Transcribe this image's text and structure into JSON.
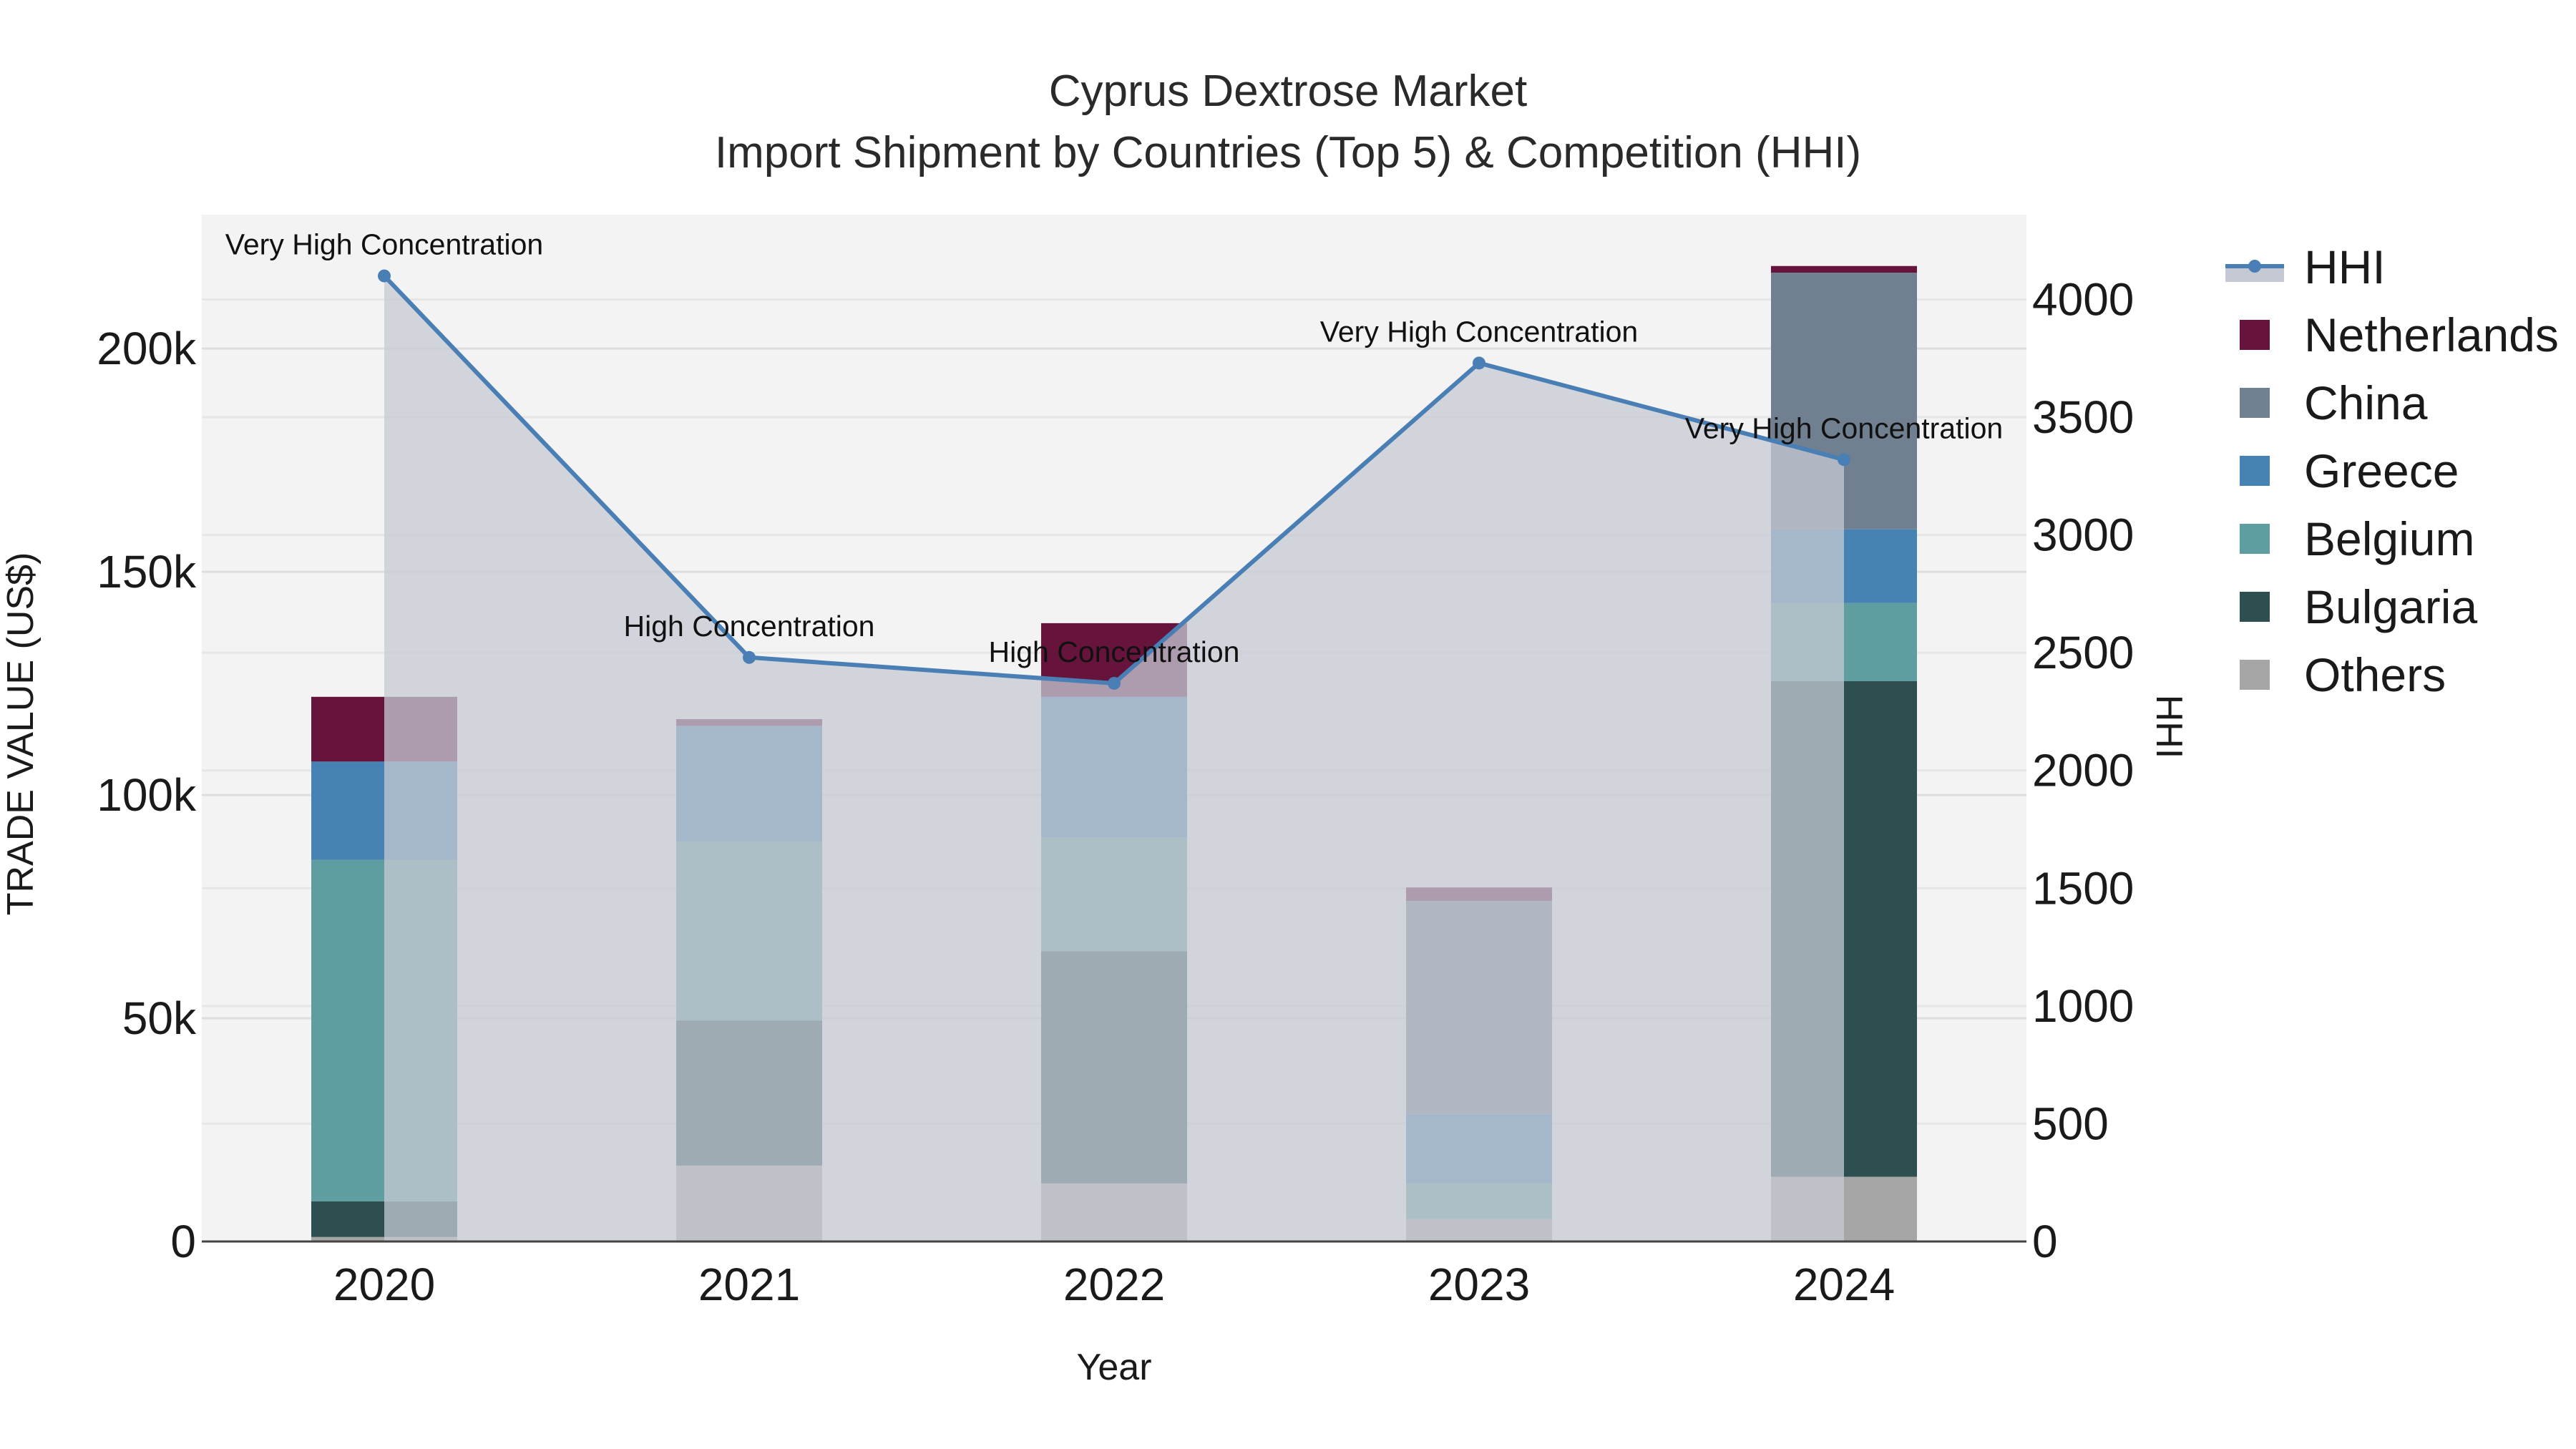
{
  "title": {
    "line1": "Cyprus Dextrose Market",
    "line2": "Import Shipment by Countries (Top 5) & Competition (HHI)"
  },
  "chart_data": {
    "type": "bar",
    "stacked": true,
    "categories": [
      "2020",
      "2021",
      "2022",
      "2023",
      "2024"
    ],
    "xlabel": "Year",
    "ylabel": "TRADE VALUE (US$)",
    "y2label": "HHI",
    "ylim": [
      0,
      230000
    ],
    "y2lim": [
      0,
      4360
    ],
    "yticks": [
      0,
      50000,
      100000,
      150000,
      200000
    ],
    "ytick_labels": [
      "0",
      "50k",
      "100k",
      "150k",
      "200k"
    ],
    "y2ticks": [
      0,
      500,
      1000,
      1500,
      2000,
      2500,
      3000,
      3500,
      4000
    ],
    "y2tick_labels": [
      "0",
      "500",
      "1000",
      "1500",
      "2000",
      "2500",
      "3000",
      "3500",
      "4000"
    ],
    "series": [
      {
        "name": "Others",
        "color": "#a6a6a6",
        "values": [
          1000,
          17000,
          13000,
          5000,
          14500
        ]
      },
      {
        "name": "Bulgaria",
        "color": "#2e4f4f",
        "values": [
          8000,
          32500,
          52000,
          0,
          111000
        ]
      },
      {
        "name": "Belgium",
        "color": "#5f9ea0",
        "values": [
          76500,
          40000,
          25500,
          8000,
          17500
        ]
      },
      {
        "name": "Greece",
        "color": "#4682b4",
        "values": [
          22000,
          26000,
          31500,
          15500,
          16500
        ]
      },
      {
        "name": "China",
        "color": "#708090",
        "values": [
          0,
          0,
          0,
          47800,
          57500
        ]
      },
      {
        "name": "Netherlands",
        "color": "#66143c",
        "values": [
          14500,
          1500,
          16500,
          3000,
          1500
        ]
      }
    ],
    "hhi": {
      "name": "HHI",
      "color": "#4a7fb5",
      "fill": "#c5c9d3",
      "values": [
        4100,
        2480,
        2370,
        3730,
        3320
      ],
      "annotations": [
        "Very High Concentration",
        "High Concentration",
        "High Concentration",
        "Very High Concentration",
        "Very High Concentration"
      ]
    },
    "legend_position": "right",
    "grid": true
  },
  "legend": {
    "items": [
      {
        "label": "HHI",
        "type": "line"
      },
      {
        "label": "Netherlands",
        "color": "#66143c"
      },
      {
        "label": "China",
        "color": "#708090"
      },
      {
        "label": "Greece",
        "color": "#4682b4"
      },
      {
        "label": "Belgium",
        "color": "#5f9ea0"
      },
      {
        "label": "Bulgaria",
        "color": "#2e4f4f"
      },
      {
        "label": "Others",
        "color": "#a6a6a6"
      }
    ]
  }
}
